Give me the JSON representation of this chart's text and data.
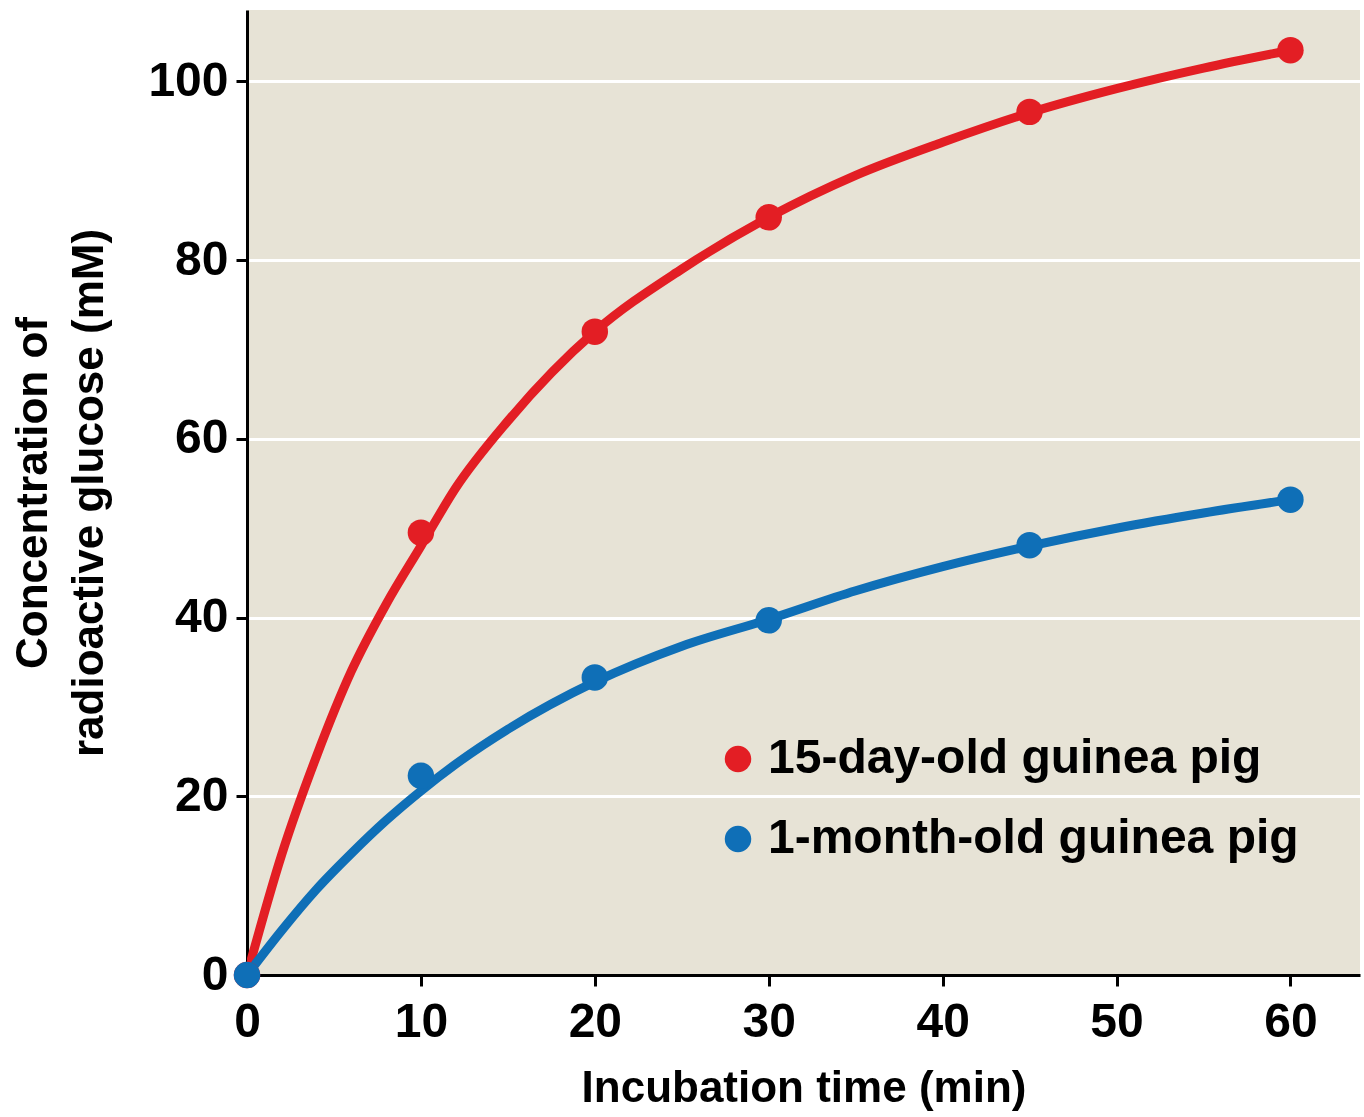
{
  "chart_data": {
    "type": "scatter",
    "xlabel": "Incubation time (min)",
    "ylabel": "Concentration of\nradioactive glucose (mM)",
    "x": [
      0,
      10,
      20,
      30,
      45,
      60
    ],
    "xlim": [
      0,
      64
    ],
    "xticks": [
      0,
      10,
      20,
      30,
      40,
      50,
      60
    ],
    "ylim": [
      0,
      108
    ],
    "yticks": [
      0,
      20,
      40,
      60,
      80,
      100
    ],
    "grid": "y",
    "legend": "bottom right",
    "marker": "circle",
    "series": [
      {
        "name": "15-day-old guinea pig",
        "color": "#e31e24",
        "values": [
          0,
          49.5,
          72,
          84.8,
          96.6,
          103.5
        ]
      },
      {
        "name": "1-month-old guinea pig",
        "color": "#0f6fb7",
        "values": [
          0,
          22.3,
          33.3,
          39.7,
          48.1,
          53.2
        ]
      },
      {
        "type": "line",
        "marker": "none",
        "color": "#e31e24",
        "x": [
          0,
          2,
          4,
          6,
          8,
          10,
          12,
          15,
          20,
          25,
          30,
          35,
          40,
          45,
          50,
          55,
          60
        ],
        "values": [
          0,
          13.5,
          24.5,
          34,
          41.5,
          48,
          54.5,
          62,
          72,
          79,
          84.8,
          89.5,
          93.2,
          96.5,
          99.2,
          101.5,
          103.5
        ]
      },
      {
        "type": "line",
        "marker": "none",
        "color": "#0f6fb7",
        "x": [
          0,
          2,
          4,
          6,
          8,
          10,
          12,
          15,
          20,
          25,
          30,
          35,
          40,
          45,
          50,
          55,
          60
        ],
        "values": [
          0,
          5,
          9.6,
          13.6,
          17.3,
          20.6,
          23.6,
          27.5,
          32.8,
          36.8,
          39.8,
          43,
          45.7,
          48,
          50,
          51.7,
          53.2
        ]
      }
    ]
  }
}
